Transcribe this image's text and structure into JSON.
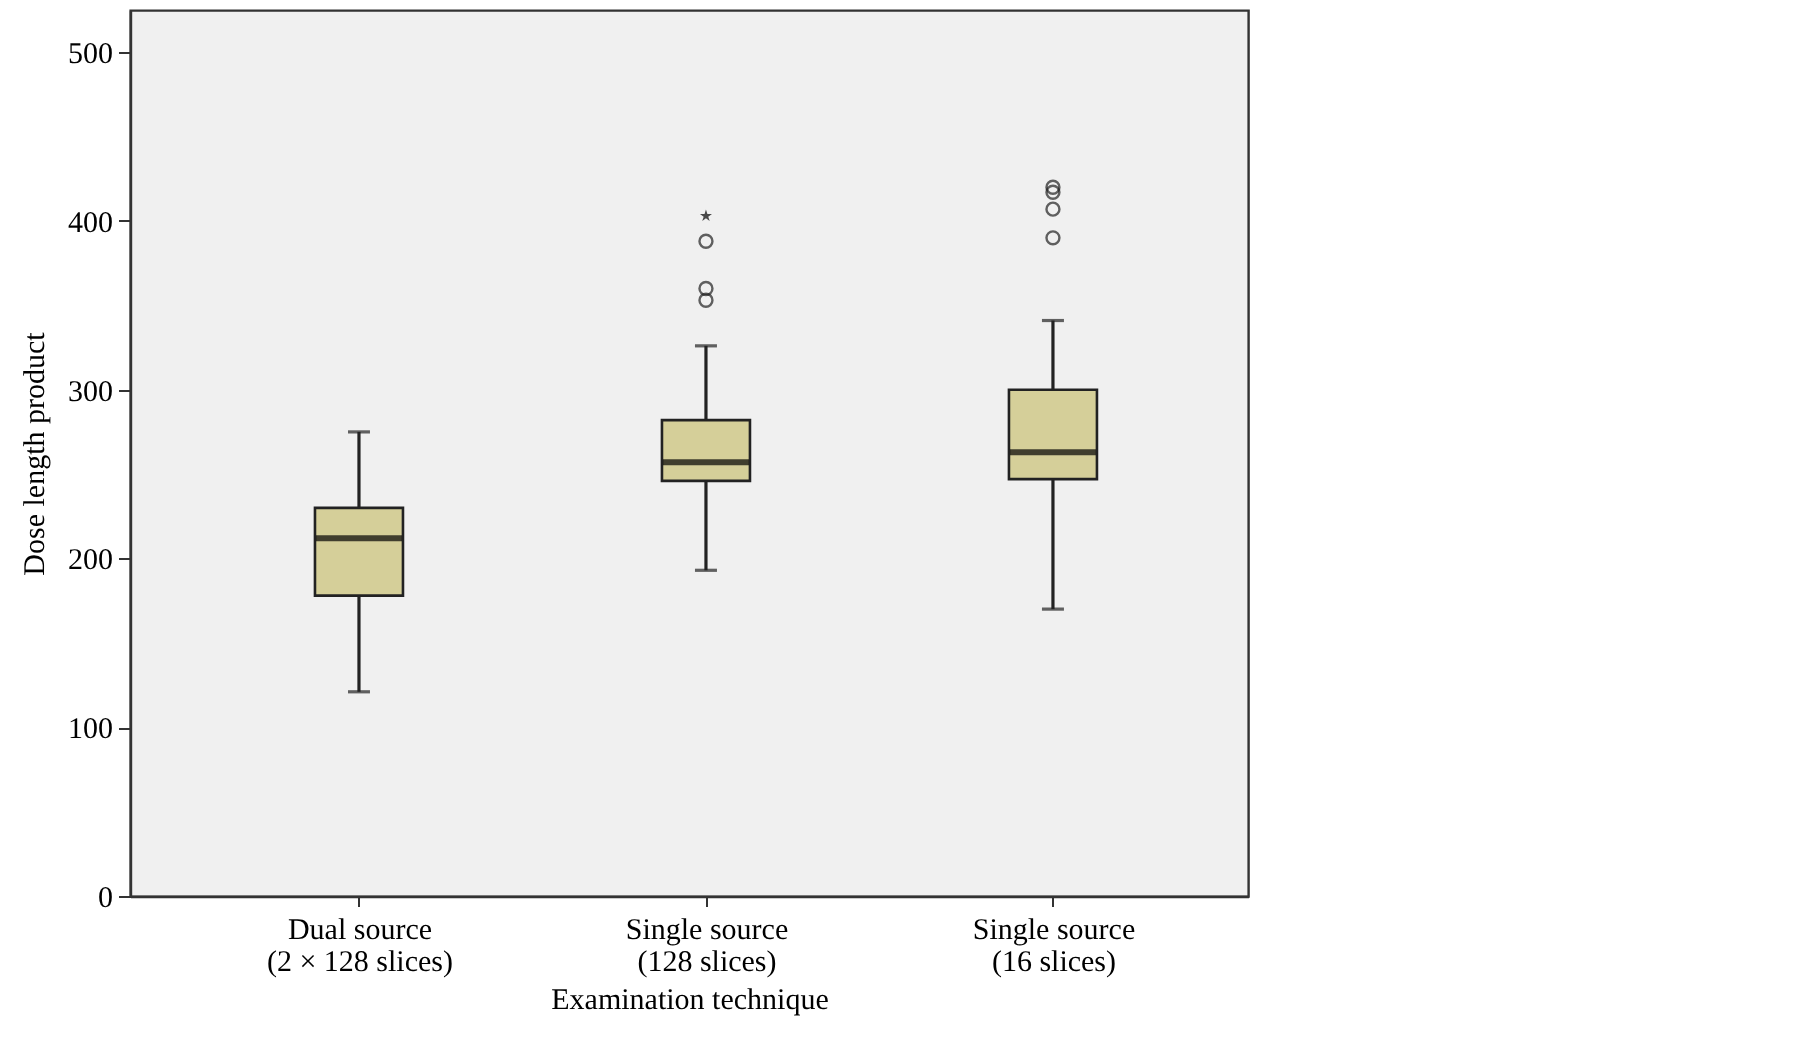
{
  "chart_data": {
    "type": "box",
    "xlabel": "Examination technique",
    "ylabel": "Dose length product",
    "categories": [
      "Dual source\n(2 × 128 slices)",
      "Single source\n(128 slices)",
      "Single source\n(16 slices)"
    ],
    "ylim": [
      0,
      525
    ],
    "yticks": [
      0,
      100,
      200,
      300,
      400,
      500
    ],
    "series": [
      {
        "color": "#d5cf99",
        "marker": "circle",
        "boxes": [
          {
            "low": 121,
            "q1": 178,
            "median": 212,
            "q3": 230,
            "high": 275
          },
          {
            "low": 193,
            "q1": 246,
            "median": 257,
            "q3": 282,
            "high": 326,
            "outliers": [
              388,
              360,
              353
            ]
          },
          {
            "low": 170,
            "q1": 247,
            "median": 263,
            "q3": 300,
            "high": 341,
            "outliers": [
              420,
              417,
              407,
              390
            ]
          }
        ]
      },
      {
        "type": "scatter",
        "color": "#000000",
        "marker": "star",
        "x": [
          "Single source\n(128 slices)"
        ],
        "values": [
          403
        ]
      }
    ]
  }
}
